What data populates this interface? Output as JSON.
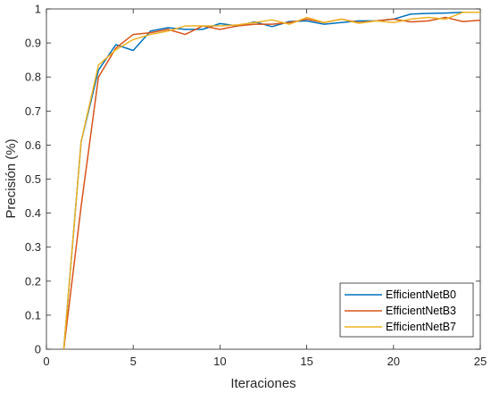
{
  "chart_data": {
    "type": "line",
    "title": "",
    "xlabel": "Iteraciones",
    "ylabel": "Precisión (%)",
    "xlim": [
      0,
      25
    ],
    "ylim": [
      0,
      1
    ],
    "xticks": [
      0,
      5,
      10,
      15,
      20,
      25
    ],
    "xtick_labels": [
      "0",
      "5",
      "10",
      "15",
      "20",
      "25"
    ],
    "yticks": [
      0,
      0.1,
      0.2,
      0.3,
      0.4,
      0.5,
      0.6,
      0.7,
      0.8,
      0.9,
      1
    ],
    "ytick_labels": [
      "0",
      "0.1",
      "0.2",
      "0.3",
      "0.4",
      "0.5",
      "0.6",
      "0.7",
      "0.8",
      "0.9",
      "1"
    ],
    "grid": false,
    "legend_position": "bottom-right",
    "x": [
      1,
      2,
      3,
      4,
      5,
      6,
      7,
      8,
      9,
      10,
      11,
      12,
      13,
      14,
      15,
      16,
      17,
      18,
      19,
      20,
      21,
      22,
      23,
      24,
      25
    ],
    "series": [
      {
        "name": "EfficientNetB0",
        "color": "#0072BD",
        "values": [
          0.0,
          0.61,
          0.82,
          0.895,
          0.878,
          0.935,
          0.945,
          0.94,
          0.94,
          0.957,
          0.95,
          0.962,
          0.948,
          0.963,
          0.965,
          0.955,
          0.96,
          0.965,
          0.965,
          0.97,
          0.985,
          0.987,
          0.988,
          0.99,
          0.99
        ]
      },
      {
        "name": "EfficientNetB3",
        "color": "#D95319",
        "values": [
          0.0,
          0.42,
          0.8,
          0.885,
          0.925,
          0.93,
          0.94,
          0.925,
          0.95,
          0.94,
          0.95,
          0.955,
          0.955,
          0.96,
          0.97,
          0.96,
          0.97,
          0.96,
          0.965,
          0.97,
          0.962,
          0.965,
          0.975,
          0.963,
          0.967
        ]
      },
      {
        "name": "EfficientNetB7",
        "color": "#EDB120",
        "values": [
          0.0,
          0.61,
          0.835,
          0.88,
          0.91,
          0.925,
          0.935,
          0.95,
          0.95,
          0.95,
          0.953,
          0.96,
          0.968,
          0.955,
          0.975,
          0.96,
          0.97,
          0.958,
          0.965,
          0.96,
          0.97,
          0.975,
          0.97,
          0.99,
          0.99
        ]
      }
    ]
  }
}
